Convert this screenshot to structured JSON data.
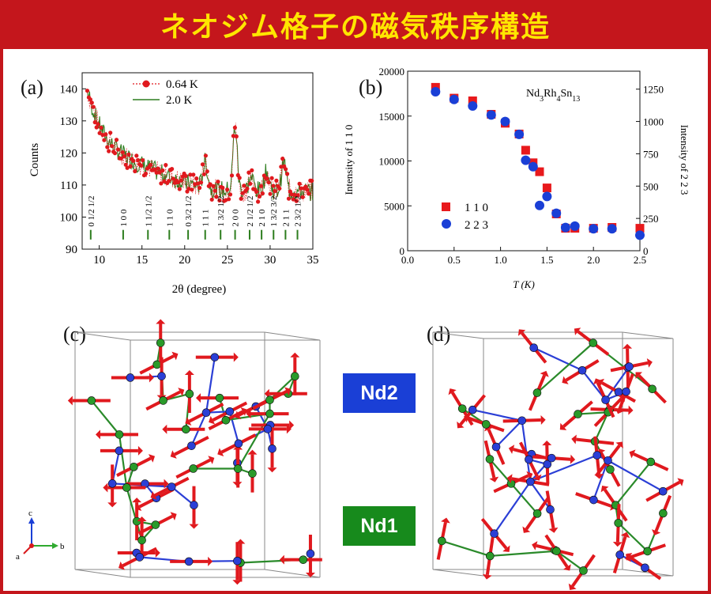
{
  "banner": {
    "title": "ネオジム格子の磁気秩序構造"
  },
  "panels": {
    "a": "(a)",
    "b": "(b)",
    "c": "(c)",
    "d": "(d)"
  },
  "labels": {
    "nd2": "Nd2",
    "nd1": "Nd1"
  },
  "axes_triad": {
    "c": "c",
    "a": "a",
    "b": "b"
  },
  "colors": {
    "banner": "#c4161c",
    "title": "#ffe600",
    "nd2": "#1a3fd6",
    "nd1": "#178a1c",
    "arrow": "#e0191e"
  },
  "chart_data": [
    {
      "type": "line",
      "ylabel": "Counts",
      "xlabel": "2θ (degree)",
      "xlim": [
        8,
        35
      ],
      "ylim": [
        90,
        145
      ],
      "xticks": [
        "10",
        "15",
        "20",
        "25",
        "30",
        "35"
      ],
      "yticks": [
        "90",
        "100",
        "110",
        "120",
        "130",
        "140"
      ],
      "legend": [
        "0.64 K",
        "2.0 K"
      ],
      "legend_position": "top-right",
      "reflections": [
        {
          "label": "0 1/2 1/2",
          "x": 9.0
        },
        {
          "label": "1 0 0",
          "x": 12.8
        },
        {
          "label": "1 1/2 1/2",
          "x": 15.7
        },
        {
          "label": "1 1 0",
          "x": 18.2
        },
        {
          "label": "0 3/2 1/2",
          "x": 20.4
        },
        {
          "label": "1 1 1",
          "x": 22.4
        },
        {
          "label": "1 3/2 1/2",
          "x": 24.2
        },
        {
          "label": "2 0 0",
          "x": 25.9
        },
        {
          "label": "2 1/2 1/2",
          "x": 27.6
        },
        {
          "label": "2 1 0",
          "x": 29.0
        },
        {
          "label": "1 3/2 3/2",
          "x": 30.4
        },
        {
          "label": "2 1 1",
          "x": 31.8
        },
        {
          "label": "2 3/2 1/2",
          "x": 33.2
        }
      ]
    },
    {
      "type": "scatter",
      "title": "Nd3Rh4Sn13",
      "xlabel": "T (K)",
      "ylabel": "Intensity of 1 1 0",
      "ylabel_right": "Intensity of 2 2 3",
      "xlim": [
        0,
        2.5
      ],
      "ylim": [
        0,
        20000
      ],
      "ylim_right": [
        0,
        1389
      ],
      "xticks": [
        "0.0",
        "0.5",
        "1.0",
        "1.5",
        "2.0",
        "2.5"
      ],
      "yticks": [
        "0",
        "5000",
        "10000",
        "15000",
        "20000"
      ],
      "yticks_right": [
        "0",
        "250",
        "500",
        "750",
        "1000",
        "1250"
      ],
      "legend_position": "lower-left",
      "series": [
        {
          "name": "1 1 0",
          "marker": "square",
          "color": "#e8191c",
          "x": [
            0.3,
            0.5,
            0.7,
            0.9,
            1.05,
            1.2,
            1.27,
            1.35,
            1.42,
            1.5,
            1.6,
            1.7,
            1.8,
            2.0,
            2.2,
            2.5
          ],
          "y": [
            18200,
            17000,
            16700,
            15200,
            14200,
            13000,
            11200,
            9800,
            8800,
            7000,
            4100,
            2500,
            2500,
            2500,
            2600,
            2500
          ]
        },
        {
          "name": "2 2 3",
          "marker": "circle",
          "color": "#1a3fd6",
          "x": [
            0.3,
            0.5,
            0.7,
            0.9,
            1.05,
            1.2,
            1.27,
            1.35,
            1.42,
            1.5,
            1.6,
            1.7,
            1.8,
            2.0,
            2.2,
            2.5
          ],
          "y": [
            1230,
            1170,
            1120,
            1050,
            1000,
            900,
            700,
            650,
            350,
            420,
            290,
            180,
            190,
            170,
            170,
            120
          ]
        }
      ]
    }
  ]
}
